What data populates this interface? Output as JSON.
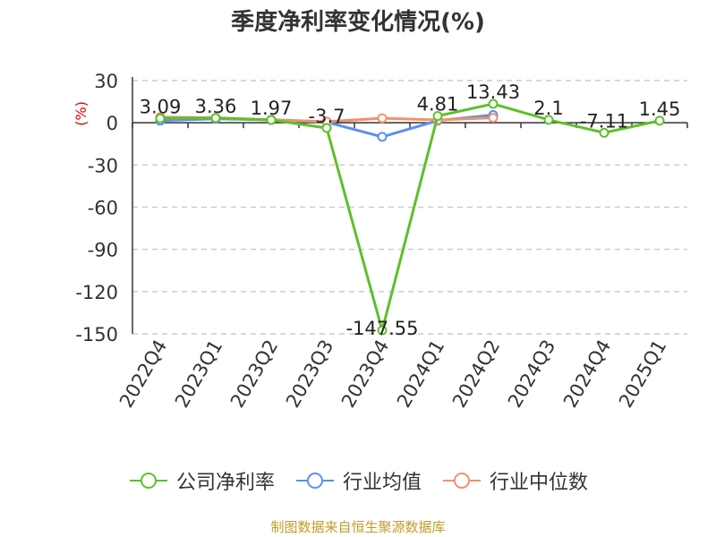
{
  "title": "季度净利率变化情况(%)",
  "y_unit": "(%)",
  "source": "制图数据来自恒生聚源数据库",
  "colors": {
    "company": "#5fbf2a",
    "industry_avg": "#5b8ff0",
    "industry_median": "#f0916b",
    "unit": "#e00000",
    "grid": "#cccccc",
    "axis": "#333333"
  },
  "chart_data": {
    "type": "line",
    "title": "季度净利率变化情况(%)",
    "xlabel": "",
    "ylabel": "(%)",
    "ylim": [
      -150,
      30
    ],
    "yticks": [
      30,
      0,
      -30,
      -60,
      -90,
      -120,
      -150
    ],
    "grid": "horizontal dashed",
    "legend_position": "bottom",
    "categories": [
      "2022Q4",
      "2023Q1",
      "2023Q2",
      "2023Q3",
      "2023Q4",
      "2024Q1",
      "2024Q2",
      "2024Q3",
      "2024Q4",
      "2025Q1"
    ],
    "series": [
      {
        "name": "公司净利率",
        "key": "company",
        "values": [
          3.09,
          3.36,
          1.97,
          -3.7,
          -147.55,
          4.81,
          13.43,
          2.1,
          -7.11,
          1.45
        ],
        "labels": [
          "3.09",
          "3.36",
          "1.97",
          "-3.7",
          "-147.55",
          "4.81",
          "13.43",
          "2.1",
          "-7.11",
          "1.45"
        ]
      },
      {
        "name": "行业均值",
        "key": "industry_avg",
        "values": [
          1.5,
          2.8,
          2.0,
          0.5,
          -10.0,
          1.5,
          5.5,
          null,
          null,
          null
        ]
      },
      {
        "name": "行业中位数",
        "key": "industry_median",
        "values": [
          4.0,
          3.5,
          2.2,
          0.8,
          3.2,
          2.0,
          3.5,
          null,
          null,
          null
        ]
      }
    ]
  }
}
